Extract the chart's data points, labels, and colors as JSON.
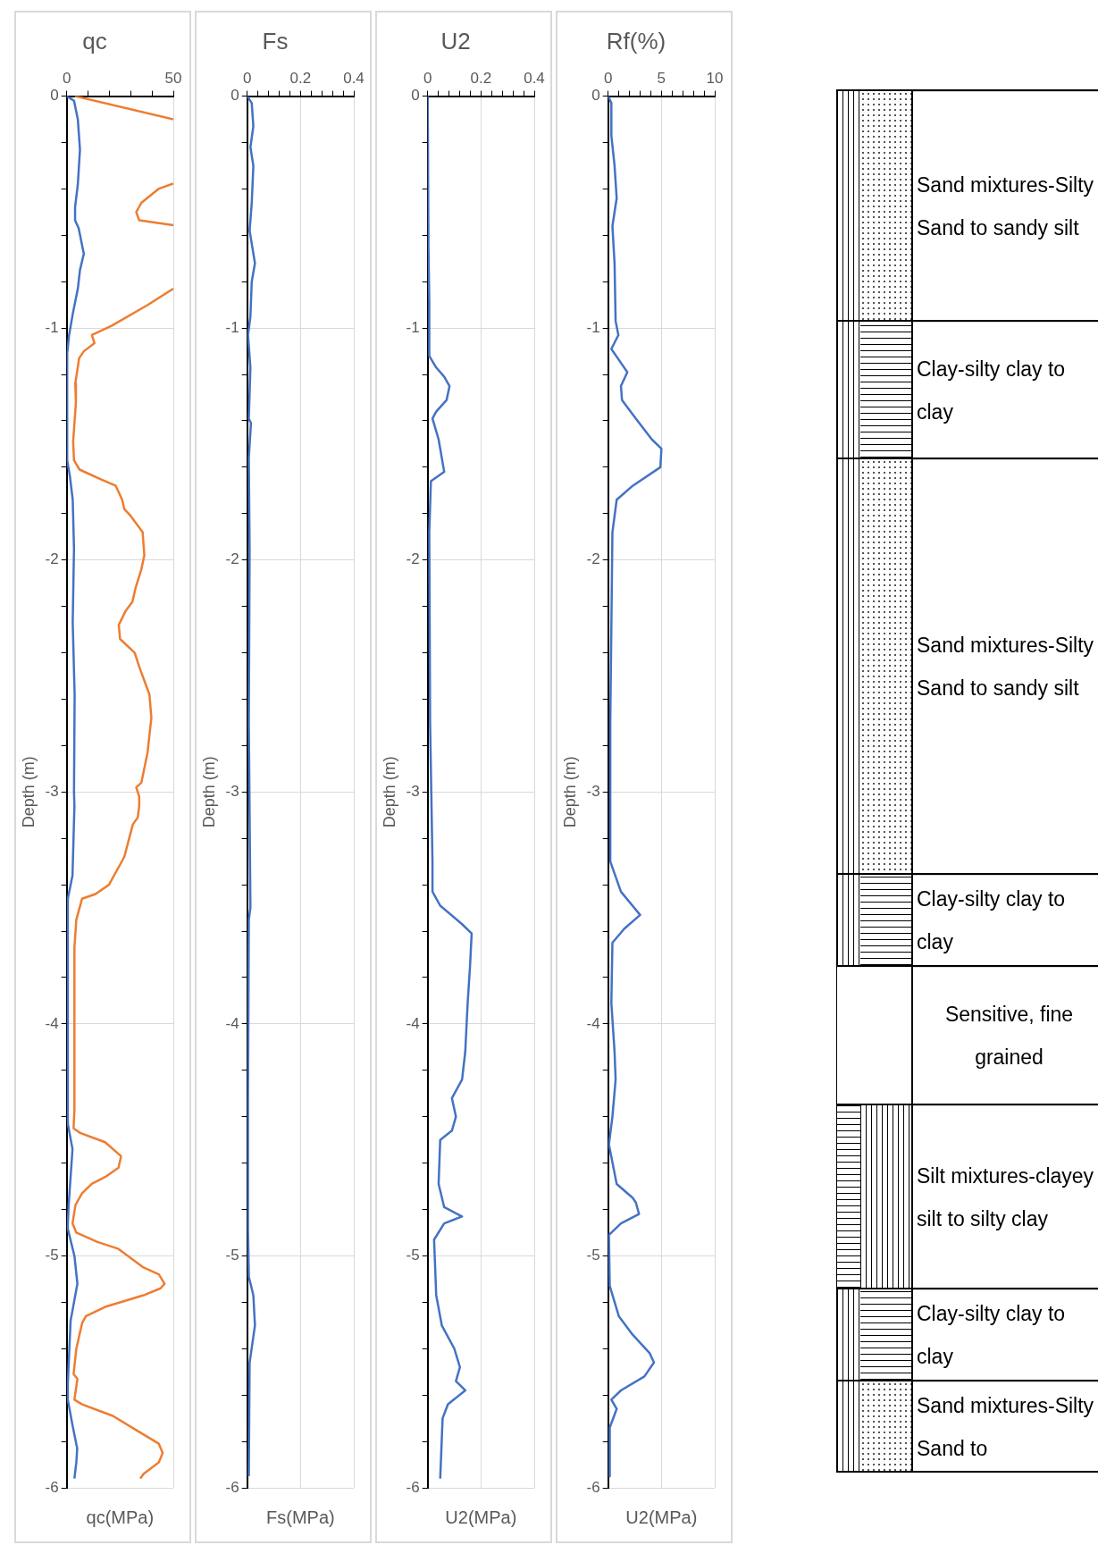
{
  "chart_data": [
    {
      "type": "line",
      "title": "qc",
      "xlabel": "qc(MPa)",
      "ylabel": "Depth (m)",
      "grid": true,
      "marker": "none",
      "xlim": [
        0,
        50
      ],
      "xticks": [
        0,
        {
          "value": 10,
          "label": null
        },
        {
          "value": 20,
          "label": null
        },
        {
          "value": 30,
          "label": null
        },
        {
          "value": 40,
          "label": null
        },
        50
      ],
      "ylim": [
        -6,
        0
      ],
      "yticks": [
        0,
        {
          "value": -0.2,
          "label": null
        },
        {
          "value": -0.4,
          "label": null
        },
        {
          "value": -0.6,
          "label": null
        },
        {
          "value": -0.8,
          "label": null
        },
        -1,
        {
          "value": -1.2,
          "label": null
        },
        {
          "value": -1.4,
          "label": null
        },
        {
          "value": -1.6,
          "label": null
        },
        {
          "value": -1.8,
          "label": null
        },
        -2,
        {
          "value": -2.2,
          "label": null
        },
        {
          "value": -2.4,
          "label": null
        },
        {
          "value": -2.6,
          "label": null
        },
        {
          "value": -2.8,
          "label": null
        },
        -3,
        {
          "value": -3.2,
          "label": null
        },
        {
          "value": -3.4,
          "label": null
        },
        {
          "value": -3.6,
          "label": null
        },
        {
          "value": -3.8,
          "label": null
        },
        -4,
        {
          "value": -4.2,
          "label": null
        },
        {
          "value": -4.4,
          "label": null
        },
        {
          "value": -4.6,
          "label": null
        },
        {
          "value": -4.8,
          "label": null
        },
        -5,
        {
          "value": -5.2,
          "label": null
        },
        {
          "value": -5.4,
          "label": null
        },
        {
          "value": -5.6,
          "label": null
        },
        {
          "value": -5.8,
          "label": null
        },
        -6
      ],
      "series": [
        {
          "color": "#4472c4",
          "x": [
            0,
            3.4,
            5.2,
            6.2,
            5.2,
            3.9,
            3.9,
            5.6,
            8,
            6.2,
            5.2,
            2.8,
            1.1,
            0.2,
            0.2,
            1.5,
            2.8,
            3.4,
            2.8,
            3.7,
            3.4,
            3.6,
            2.7,
            0.5,
            0.5,
            2.7,
            0.9,
            0.4,
            3.6,
            5,
            1.8,
            0.5,
            0.5,
            2.7,
            4.9,
            4.5,
            3.6
          ],
          "values": [
            0,
            -0.02,
            -0.1,
            -0.23,
            -0.38,
            -0.48,
            -0.535,
            -0.57,
            -0.68,
            -0.75,
            -0.83,
            -0.94,
            -1.03,
            -1.11,
            -1.57,
            -1.64,
            -1.74,
            -1.95,
            -2.27,
            -2.58,
            -3,
            -3.06,
            -3.36,
            -3.46,
            -4.43,
            -4.54,
            -4.78,
            -4.88,
            -5,
            -5.12,
            -5.28,
            -5.55,
            -5.62,
            -5.73,
            -5.83,
            -5.89,
            -5.96
          ]
        },
        {
          "color": "#ed7d31",
          "x": [
            3.9,
            50,
            null,
            50,
            43,
            35,
            32.6,
            34,
            50,
            null,
            50,
            38,
            21,
            11.8,
            13,
            8,
            5.8,
            4,
            4.3,
            3,
            3.4,
            6,
            15.5,
            23,
            26,
            27,
            30,
            35.6,
            36.4,
            35,
            32.3,
            30.8,
            27.6,
            24.4,
            25,
            31.9,
            34,
            38.8,
            39.7,
            37.9,
            35,
            32.6,
            34,
            34,
            33.3,
            31,
            27,
            19.8,
            13.5,
            7.2,
            4.5,
            3.6,
            3.6,
            3.2,
            6.3,
            18,
            25.5,
            24.3,
            18,
            11.7,
            7.2,
            4.1,
            2.7,
            4.5,
            14.4,
            24.3,
            36,
            43.2,
            45.9,
            44,
            36,
            18,
            9,
            7.2,
            4.5,
            3.2,
            5,
            3.6,
            7.2,
            21.6,
            32.4,
            43.2,
            45,
            43.2,
            36,
            34.5
          ],
          "values": [
            0,
            -0.1,
            null,
            -0.377,
            -0.4,
            -0.46,
            -0.5,
            -0.535,
            -0.556,
            null,
            -0.83,
            -0.9,
            -0.99,
            -1.03,
            -1.065,
            -1.1,
            -1.13,
            -1.24,
            -1.32,
            -1.49,
            -1.57,
            -1.61,
            -1.65,
            -1.68,
            -1.74,
            -1.78,
            -1.81,
            -1.88,
            -1.98,
            -2.04,
            -2.12,
            -2.18,
            -2.22,
            -2.28,
            -2.34,
            -2.4,
            -2.46,
            -2.58,
            -2.68,
            -2.83,
            -2.96,
            -2.98,
            -3.02,
            -3.06,
            -3.11,
            -3.14,
            -3.28,
            -3.4,
            -3.44,
            -3.46,
            -3.55,
            -3.67,
            -4.37,
            -4.45,
            -4.47,
            -4.51,
            -4.57,
            -4.62,
            -4.66,
            -4.69,
            -4.73,
            -4.78,
            -4.86,
            -4.9,
            -4.94,
            -4.97,
            -5.05,
            -5.08,
            -5.12,
            -5.14,
            -5.17,
            -5.22,
            -5.26,
            -5.29,
            -5.4,
            -5.51,
            -5.53,
            -5.62,
            -5.64,
            -5.69,
            -5.75,
            -5.81,
            -5.85,
            -5.89,
            -5.94,
            -5.96
          ]
        }
      ]
    },
    {
      "type": "line",
      "title": "Fs",
      "xlabel": "Fs(MPa)",
      "ylabel": "Depth (m)",
      "grid": true,
      "marker": "none",
      "xlim": [
        0,
        0.4
      ],
      "xticks": [
        0,
        {
          "value": 0.04,
          "label": null
        },
        {
          "value": 0.08,
          "label": null
        },
        {
          "value": 0.12,
          "label": null
        },
        {
          "value": 0.16,
          "label": null
        },
        0.2,
        {
          "value": 0.24,
          "label": null
        },
        {
          "value": 0.28,
          "label": null
        },
        {
          "value": 0.32,
          "label": null
        },
        {
          "value": 0.36,
          "label": null
        },
        0.4
      ],
      "ylim": [
        -6,
        0
      ],
      "yticks": [
        0,
        {
          "value": -0.2,
          "label": null
        },
        {
          "value": -0.4,
          "label": null
        },
        {
          "value": -0.6,
          "label": null
        },
        {
          "value": -0.8,
          "label": null
        },
        -1,
        {
          "value": -1.2,
          "label": null
        },
        {
          "value": -1.4,
          "label": null
        },
        {
          "value": -1.6,
          "label": null
        },
        {
          "value": -1.8,
          "label": null
        },
        -2,
        {
          "value": -2.2,
          "label": null
        },
        {
          "value": -2.4,
          "label": null
        },
        {
          "value": -2.6,
          "label": null
        },
        {
          "value": -2.8,
          "label": null
        },
        -3,
        {
          "value": -3.2,
          "label": null
        },
        {
          "value": -3.4,
          "label": null
        },
        {
          "value": -3.6,
          "label": null
        },
        {
          "value": -3.8,
          "label": null
        },
        -4,
        {
          "value": -4.2,
          "label": null
        },
        {
          "value": -4.4,
          "label": null
        },
        {
          "value": -4.6,
          "label": null
        },
        {
          "value": -4.8,
          "label": null
        },
        -5,
        {
          "value": -5.2,
          "label": null
        },
        {
          "value": -5.4,
          "label": null
        },
        {
          "value": -5.6,
          "label": null
        },
        {
          "value": -5.8,
          "label": null
        },
        -6
      ],
      "series": [
        {
          "color": "#4472c4",
          "x": [
            0,
            0.017,
            0.023,
            0.012,
            0.023,
            0.017,
            0.009,
            0.029,
            0.017,
            0.012,
            0.003,
            0.012,
            0.006,
            0.014,
            0.006,
            0.009,
            0.006,
            0.012,
            0.006,
            0.003,
            0.003,
            0.006,
            0.023,
            0.029,
            0.009,
            0.006
          ],
          "values": [
            0,
            -0.03,
            -0.13,
            -0.22,
            -0.3,
            -0.46,
            -0.58,
            -0.72,
            -0.8,
            -0.95,
            -1.03,
            -1.17,
            -1.39,
            -1.41,
            -1.56,
            -1.96,
            -2.7,
            -3.5,
            -3.55,
            -4.32,
            -4.89,
            -5.09,
            -5.17,
            -5.3,
            -5.46,
            -5.95
          ]
        }
      ]
    },
    {
      "type": "line",
      "title": "U2",
      "xlabel": "U2(MPa)",
      "ylabel": "Depth (m)",
      "grid": true,
      "marker": "none",
      "xlim": [
        0,
        0.4
      ],
      "xticks": [
        0,
        {
          "value": 0.04,
          "label": null
        },
        {
          "value": 0.08,
          "label": null
        },
        {
          "value": 0.12,
          "label": null
        },
        {
          "value": 0.16,
          "label": null
        },
        0.2,
        {
          "value": 0.24,
          "label": null
        },
        {
          "value": 0.28,
          "label": null
        },
        {
          "value": 0.32,
          "label": null
        },
        {
          "value": 0.36,
          "label": null
        },
        0.4
      ],
      "ylim": [
        -6,
        0
      ],
      "yticks": [
        0,
        {
          "value": -0.2,
          "label": null
        },
        {
          "value": -0.4,
          "label": null
        },
        {
          "value": -0.6,
          "label": null
        },
        {
          "value": -0.8,
          "label": null
        },
        -1,
        {
          "value": -1.2,
          "label": null
        },
        {
          "value": -1.4,
          "label": null
        },
        {
          "value": -1.6,
          "label": null
        },
        {
          "value": -1.8,
          "label": null
        },
        -2,
        {
          "value": -2.2,
          "label": null
        },
        {
          "value": -2.4,
          "label": null
        },
        {
          "value": -2.6,
          "label": null
        },
        {
          "value": -2.8,
          "label": null
        },
        -3,
        {
          "value": -3.2,
          "label": null
        },
        {
          "value": -3.4,
          "label": null
        },
        {
          "value": -3.6,
          "label": null
        },
        {
          "value": -3.8,
          "label": null
        },
        -4,
        {
          "value": -4.2,
          "label": null
        },
        {
          "value": -4.4,
          "label": null
        },
        {
          "value": -4.6,
          "label": null
        },
        {
          "value": -4.8,
          "label": null
        },
        -5,
        {
          "value": -5.2,
          "label": null
        },
        {
          "value": -5.4,
          "label": null
        },
        {
          "value": -5.6,
          "label": null
        },
        {
          "value": -5.8,
          "label": null
        },
        -6
      ],
      "series": [
        {
          "color": "#4472c4",
          "x": [
            0,
            0.003,
            0.006,
            0.006,
            0.032,
            0.062,
            0.082,
            0.071,
            0.032,
            0.018,
            0.041,
            0.056,
            0.062,
            0.012,
            0.006,
            0.009,
            0.018,
            0.018,
            0.047,
            0.129,
            0.165,
            0.159,
            0.15,
            0.141,
            0.129,
            0.091,
            0.106,
            0.091,
            0.047,
            0.041,
            0.062,
            0.129,
            0.062,
            0.024,
            0.032,
            0.053,
            0.1,
            0.121,
            0.106,
            0.141,
            0.076,
            0.056,
            0.047
          ],
          "values": [
            0,
            -0.66,
            -0.89,
            -1.12,
            -1.17,
            -1.21,
            -1.25,
            -1.31,
            -1.36,
            -1.39,
            -1.48,
            -1.58,
            -1.62,
            -1.66,
            -1.88,
            -2.7,
            -3.3,
            -3.43,
            -3.49,
            -3.57,
            -3.61,
            -3.75,
            -3.91,
            -4.12,
            -4.24,
            -4.32,
            -4.4,
            -4.46,
            -4.5,
            -4.69,
            -4.79,
            -4.83,
            -4.86,
            -4.93,
            -5.17,
            -5.3,
            -5.4,
            -5.48,
            -5.54,
            -5.58,
            -5.64,
            -5.7,
            -5.96
          ]
        }
      ]
    },
    {
      "type": "line",
      "title": "Rf(%)",
      "xlabel": "U2(MPa)",
      "ylabel": "Depth (m)",
      "grid": true,
      "marker": "none",
      "xlim": [
        0,
        10
      ],
      "xticks": [
        0,
        {
          "value": 1,
          "label": null
        },
        {
          "value": 2,
          "label": null
        },
        {
          "value": 3,
          "label": null
        },
        {
          "value": 4,
          "label": null
        },
        5,
        {
          "value": 6,
          "label": null
        },
        {
          "value": 7,
          "label": null
        },
        {
          "value": 8,
          "label": null
        },
        {
          "value": 9,
          "label": null
        },
        10
      ],
      "ylim": [
        -6,
        0
      ],
      "yticks": [
        0,
        {
          "value": -0.2,
          "label": null
        },
        {
          "value": -0.4,
          "label": null
        },
        {
          "value": -0.6,
          "label": null
        },
        {
          "value": -0.8,
          "label": null
        },
        -1,
        {
          "value": -1.2,
          "label": null
        },
        {
          "value": -1.4,
          "label": null
        },
        {
          "value": -1.6,
          "label": null
        },
        {
          "value": -1.8,
          "label": null
        },
        -2,
        {
          "value": -2.2,
          "label": null
        },
        {
          "value": -2.4,
          "label": null
        },
        {
          "value": -2.6,
          "label": null
        },
        {
          "value": -2.8,
          "label": null
        },
        -3,
        {
          "value": -3.2,
          "label": null
        },
        {
          "value": -3.4,
          "label": null
        },
        {
          "value": -3.6,
          "label": null
        },
        {
          "value": -3.8,
          "label": null
        },
        -4,
        {
          "value": -4.2,
          "label": null
        },
        {
          "value": -4.4,
          "label": null
        },
        {
          "value": -4.6,
          "label": null
        },
        {
          "value": -4.8,
          "label": null
        },
        -5,
        {
          "value": -5.2,
          "label": null
        },
        {
          "value": -5.4,
          "label": null
        },
        {
          "value": -5.6,
          "label": null
        },
        {
          "value": -5.8,
          "label": null
        },
        -6
      ],
      "series": [
        {
          "color": "#4472c4",
          "x": [
            0,
            0.3,
            0.3,
            0.6,
            0.8,
            0.4,
            0.6,
            0.7,
            0.96,
            0.3,
            1.2,
            1.8,
            1.2,
            1.3,
            2.6,
            4.1,
            5,
            4.9,
            2.3,
            0.8,
            0.4,
            0.2,
            0.2,
            1.2,
            3,
            1.5,
            0.4,
            0.3,
            0.6,
            0.7,
            0.4,
            0.07,
            0.8,
            2.3,
            2.6,
            2.9,
            1.2,
            0.07,
            0.15,
            1,
            2.3,
            3.9,
            4.3,
            3.4,
            1.2,
            0.3,
            0.8,
            0.15,
            0.15
          ],
          "values": [
            0,
            -0.03,
            -0.17,
            -0.3,
            -0.44,
            -0.56,
            -0.72,
            -0.97,
            -1.03,
            -1.09,
            -1.15,
            -1.19,
            -1.25,
            -1.31,
            -1.39,
            -1.48,
            -1.52,
            -1.6,
            -1.68,
            -1.74,
            -1.88,
            -2.7,
            -3.3,
            -3.43,
            -3.53,
            -3.59,
            -3.65,
            -3.91,
            -4.12,
            -4.24,
            -4.4,
            -4.52,
            -4.69,
            -4.75,
            -4.77,
            -4.82,
            -4.86,
            -4.91,
            -5.13,
            -5.26,
            -5.34,
            -5.42,
            -5.46,
            -5.52,
            -5.58,
            -5.62,
            -5.66,
            -5.74,
            -5.95
          ]
        }
      ]
    },
    {
      "type": "other",
      "annotations": [
        "Sand mixtures-Silty Sand to sandy silt",
        "Clay-silty clay to clay",
        "Sand mixtures-Silty Sand to sandy silt",
        "Clay-silty clay to clay",
        "Sensitive, fine grained",
        "Silt mixtures-clayey silt to silty clay",
        "Clay-silty clay to clay",
        "Sand mixtures-Silty Sand to"
      ]
    }
  ]
}
